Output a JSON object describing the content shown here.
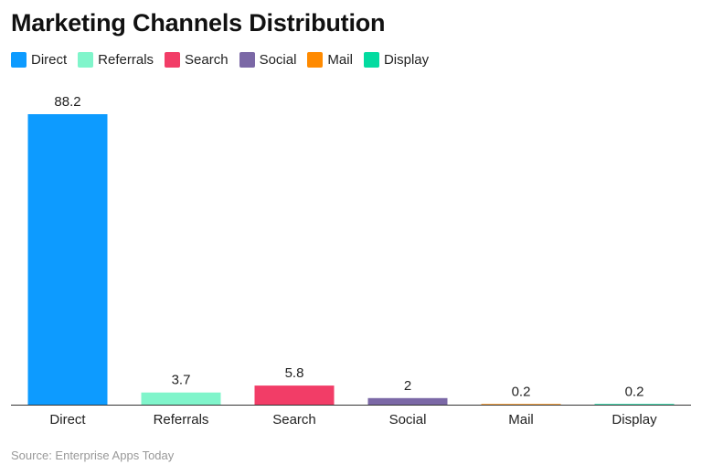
{
  "chart_data": {
    "type": "bar",
    "title": "Marketing Channels Distribution",
    "categories": [
      "Direct",
      "Referrals",
      "Search",
      "Social",
      "Mail",
      "Display"
    ],
    "values": [
      88.2,
      3.7,
      5.8,
      2,
      0.2,
      0.2
    ],
    "value_labels": [
      "88.2",
      "3.7",
      "5.8",
      "2",
      "0.2",
      "0.2"
    ],
    "colors": [
      "#0d9bff",
      "#80f5cb",
      "#f23d67",
      "#7b68a6",
      "#ff8a00",
      "#03dba0"
    ],
    "legend": [
      "Direct",
      "Referrals",
      "Search",
      "Social",
      "Mail",
      "Display"
    ],
    "legend_position": "top-left",
    "ylim": [
      0,
      88.2
    ],
    "grid": false,
    "source": "Source: Enterprise Apps Today"
  }
}
